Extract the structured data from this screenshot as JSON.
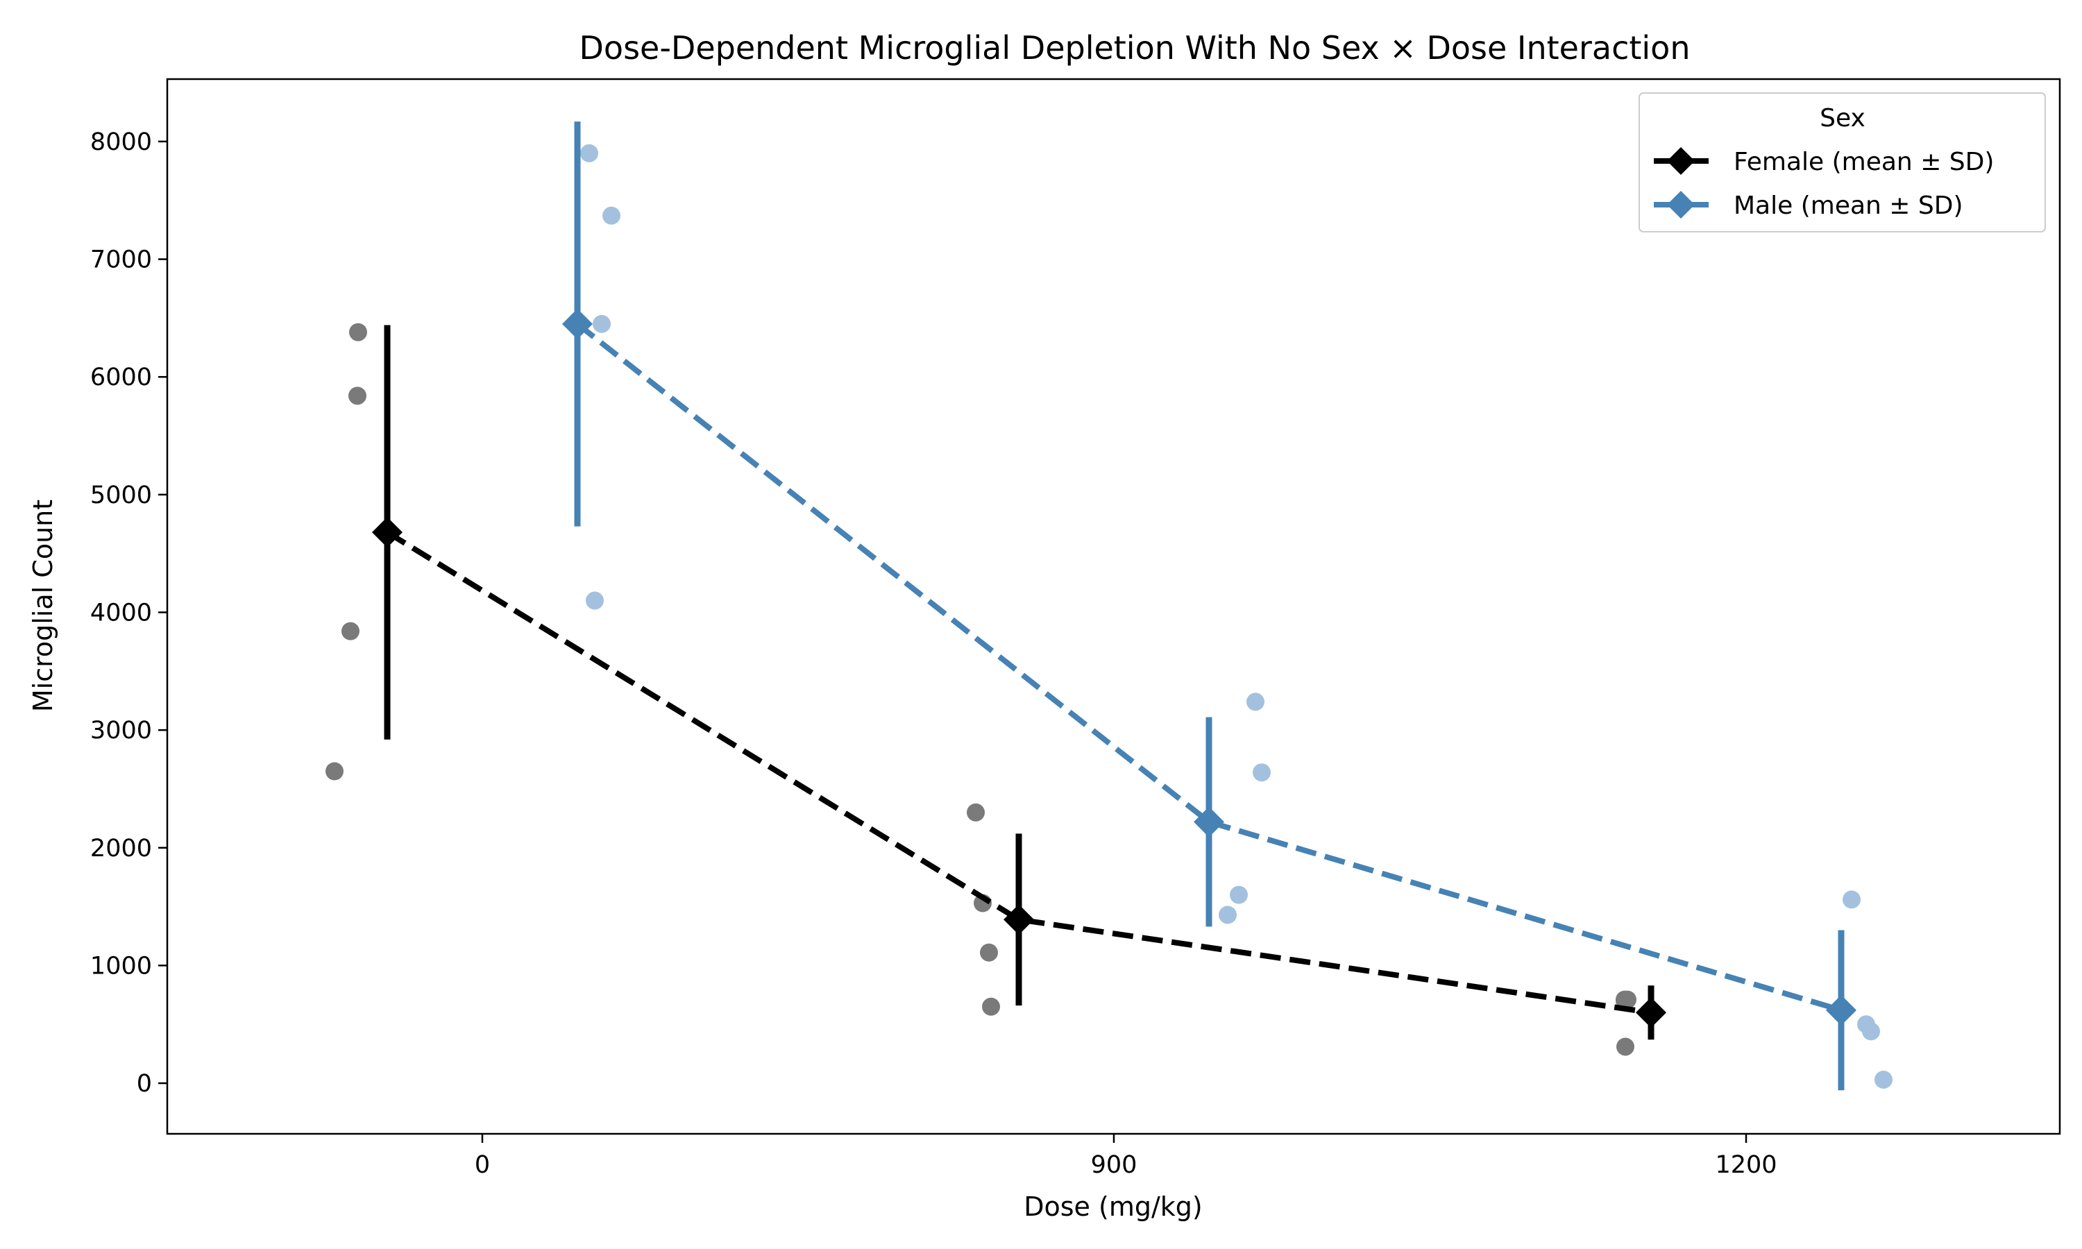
{
  "chart_data": {
    "type": "scatter",
    "title": "Dose-Dependent Microglial Depletion With No Sex × Dose Interaction",
    "xlabel": "Dose (mg/kg)",
    "ylabel": "Microglial Count",
    "categories": [
      "0",
      "900",
      "1200"
    ],
    "yticks": [
      0,
      1000,
      2000,
      3000,
      4000,
      5000,
      6000,
      7000,
      8000
    ],
    "ylim": [
      -430,
      8530
    ],
    "grid": false,
    "legend": {
      "title": "Sex",
      "position": "top-right"
    },
    "series": [
      {
        "name": "Female (mean ± SD)",
        "color": "#000000",
        "point_color": "#7a7a7a",
        "mean": [
          4680,
          1390,
          600
        ],
        "sd": [
          1760,
          730,
          230
        ],
        "points": [
          [
            2650,
            3840,
            5840,
            6380
          ],
          [
            2300,
            1530,
            1110,
            650
          ],
          [
            710,
            710,
            700,
            310
          ]
        ]
      },
      {
        "name": "Male (mean ± SD)",
        "color": "#4682b4",
        "point_color": "#a3c1de",
        "mean": [
          6450,
          2220,
          620
        ],
        "sd": [
          1720,
          890,
          680
        ],
        "points": [
          [
            7900,
            7370,
            6450,
            4100
          ],
          [
            3240,
            2640,
            1600,
            1430
          ],
          [
            1560,
            500,
            440,
            30
          ]
        ]
      }
    ]
  }
}
